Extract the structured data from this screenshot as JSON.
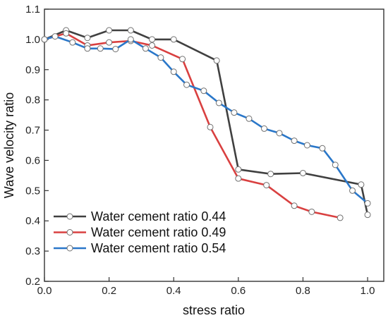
{
  "chart_data": {
    "type": "line",
    "title": "",
    "xlabel": "stress ratio",
    "ylabel": "Wave velocity ratio",
    "xlim": [
      0.0,
      1.05
    ],
    "ylim": [
      0.2,
      1.1
    ],
    "xticks": [
      0.0,
      0.2,
      0.4,
      0.6,
      0.8,
      1.0
    ],
    "xtick_labels": [
      "0.0",
      "0.2",
      "0.4",
      "0.6",
      "0.8",
      "1.0"
    ],
    "yticks": [
      0.2,
      0.3,
      0.4,
      0.5,
      0.6,
      0.7,
      0.8,
      0.9,
      1.0,
      1.1
    ],
    "ytick_labels": [
      "0.2",
      "0.3",
      "0.4",
      "0.5",
      "0.6",
      "0.7",
      "0.8",
      "0.9",
      "1.0",
      "1.1"
    ],
    "grid": false,
    "legend_position": "bottom-left",
    "marker": "open-circle",
    "series": [
      {
        "name": "Water cement ratio 0.44",
        "color": "#404040",
        "x": [
          0.0,
          0.067,
          0.133,
          0.2,
          0.267,
          0.333,
          0.4,
          0.533,
          0.6,
          0.7,
          0.8,
          0.98,
          1.0
        ],
        "y": [
          1.0,
          1.03,
          1.005,
          1.03,
          1.03,
          1.0,
          1.0,
          0.93,
          0.57,
          0.555,
          0.558,
          0.52,
          0.42
        ]
      },
      {
        "name": "Water cement ratio 0.49",
        "color": "#d94040",
        "x": [
          0.0,
          0.067,
          0.133,
          0.2,
          0.267,
          0.333,
          0.427,
          0.513,
          0.6,
          0.687,
          0.773,
          0.827,
          0.915
        ],
        "y": [
          1.0,
          1.02,
          0.98,
          0.99,
          0.995,
          0.98,
          0.935,
          0.71,
          0.54,
          0.518,
          0.45,
          0.43,
          0.41
        ]
      },
      {
        "name": "Water cement ratio 0.54",
        "color": "#2a77c9",
        "x": [
          0.0,
          0.033,
          0.087,
          0.133,
          0.173,
          0.22,
          0.267,
          0.313,
          0.36,
          0.4,
          0.44,
          0.493,
          0.54,
          0.587,
          0.633,
          0.68,
          0.727,
          0.773,
          0.813,
          0.86,
          0.9,
          0.953,
          1.0
        ],
        "y": [
          1.0,
          1.01,
          0.99,
          0.97,
          0.97,
          0.968,
          1.0,
          0.97,
          0.94,
          0.893,
          0.85,
          0.83,
          0.79,
          0.758,
          0.738,
          0.705,
          0.69,
          0.665,
          0.65,
          0.64,
          0.585,
          0.5,
          0.458
        ]
      }
    ]
  }
}
